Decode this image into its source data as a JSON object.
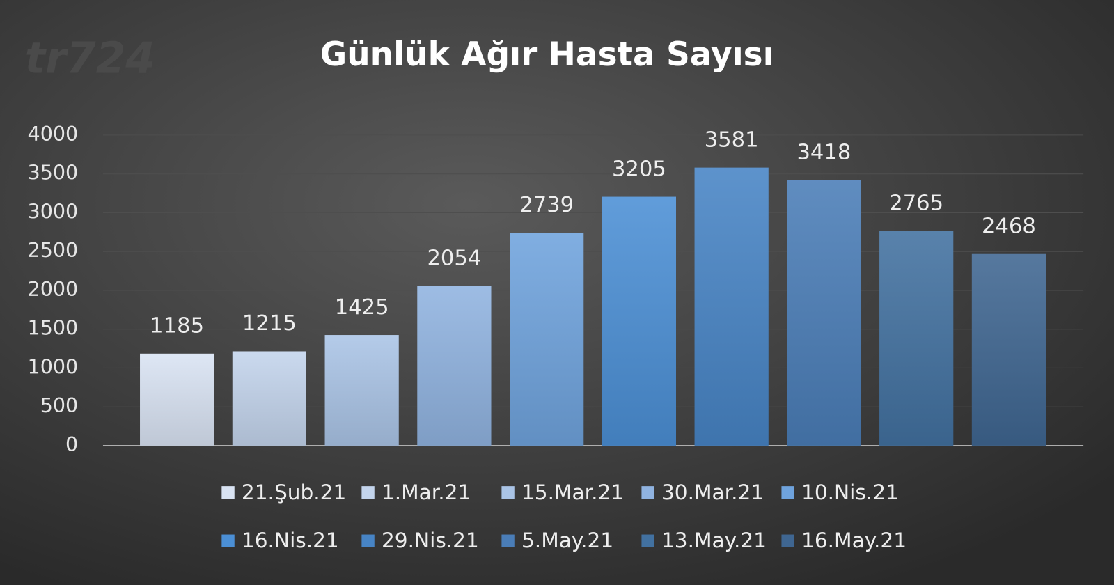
{
  "chart_data": {
    "type": "bar",
    "title": "Günlük Ağır Hasta Sayısı",
    "watermark": "tr724",
    "categories": [
      "21.Şub.21",
      "1.Mar.21",
      "15.Mar.21",
      "30.Mar.21",
      "10.Nis.21",
      "16.Nis.21",
      "29.Nis.21",
      "5.May.21",
      "13.May.21",
      "16.May.21"
    ],
    "values": [
      1185,
      1215,
      1425,
      2054,
      2739,
      3205,
      3581,
      3418,
      2765,
      2468
    ],
    "colors": [
      "#d9e3f3",
      "#c3d4ec",
      "#aac4e6",
      "#90b3e0",
      "#6fa3dd",
      "#4b8fd5",
      "#4784c5",
      "#4a7db7",
      "#4271a0",
      "#3f6691"
    ],
    "ylim": [
      0,
      4000
    ],
    "yticks": [
      0,
      500,
      1000,
      1500,
      2000,
      2500,
      3000,
      3500,
      4000
    ],
    "grid": true,
    "legend": "bottom"
  }
}
